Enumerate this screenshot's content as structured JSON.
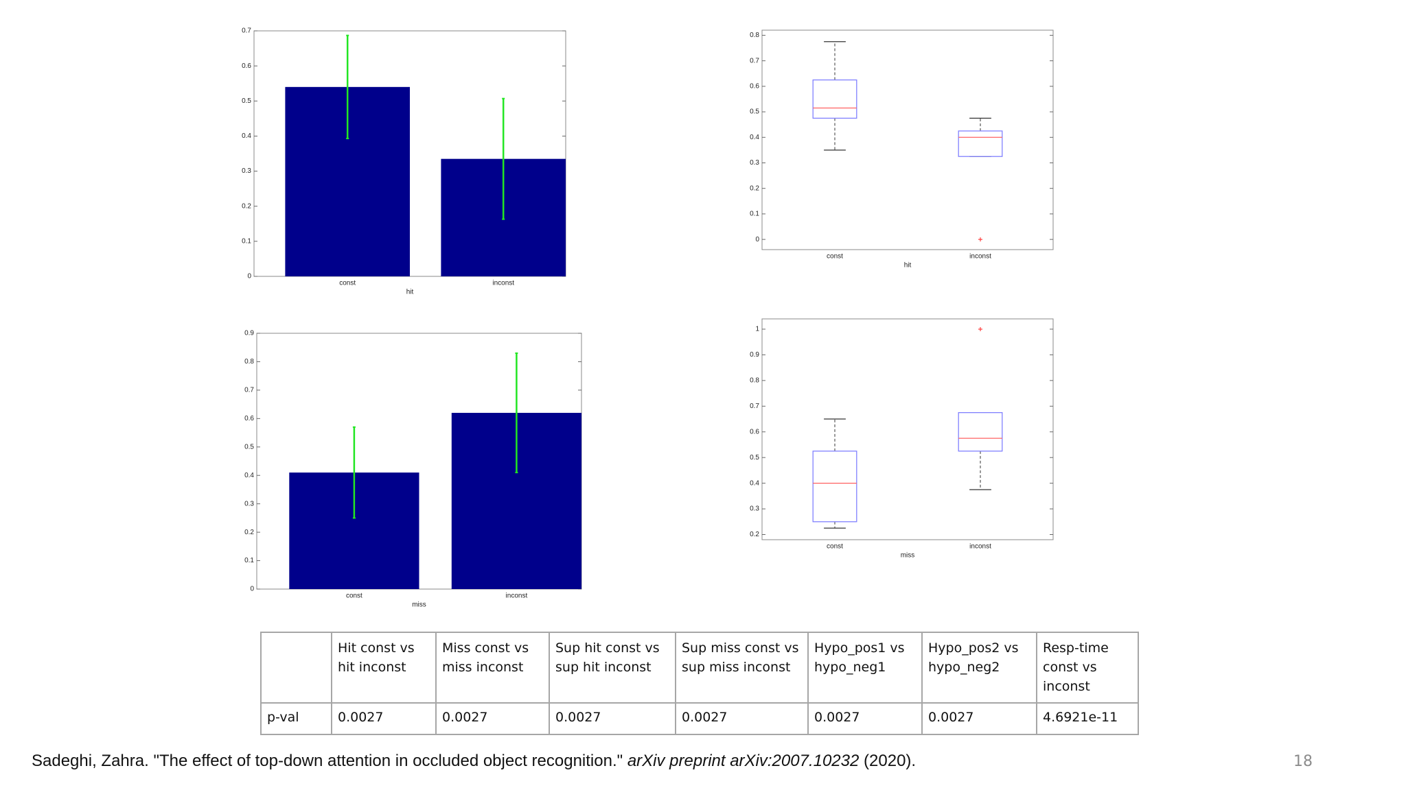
{
  "chart_data": [
    {
      "type": "bar",
      "categories": [
        "const",
        "inconst"
      ],
      "values": [
        0.54,
        0.335
      ],
      "errors": [
        0.147,
        0.172
      ],
      "color": "#00008b",
      "error_color": "#22e622",
      "xlabel": "hit",
      "ylim": [
        0,
        0.7
      ],
      "yticks": [
        0,
        0.1,
        0.2,
        0.3,
        0.4,
        0.5,
        0.6,
        0.7
      ]
    },
    {
      "type": "box",
      "categories": [
        "const",
        "inconst"
      ],
      "boxes": [
        {
          "low": 0.35,
          "q1": 0.475,
          "median": 0.515,
          "q3": 0.625,
          "high": 0.775,
          "outliers": []
        },
        {
          "low": 0.325,
          "q1": 0.325,
          "median": 0.4,
          "q3": 0.425,
          "high": 0.475,
          "outliers": [
            0
          ]
        }
      ],
      "box_color": "#8080ff",
      "median_color": "#ff6060",
      "whisker_color": "#333333",
      "outlier_color": "#ff4040",
      "xlabel": "hit",
      "ylim": [
        -0.04,
        0.82
      ],
      "yticks": [
        0,
        0.1,
        0.2,
        0.3,
        0.4,
        0.5,
        0.6,
        0.7,
        0.8
      ]
    },
    {
      "type": "bar",
      "categories": [
        "const",
        "inconst"
      ],
      "values": [
        0.41,
        0.62
      ],
      "errors": [
        0.16,
        0.21
      ],
      "color": "#00008b",
      "error_color": "#22e622",
      "xlabel": "miss",
      "ylim": [
        0,
        0.9
      ],
      "yticks": [
        0,
        0.1,
        0.2,
        0.3,
        0.4,
        0.5,
        0.6,
        0.7,
        0.8,
        0.9
      ]
    },
    {
      "type": "box",
      "categories": [
        "const",
        "inconst"
      ],
      "boxes": [
        {
          "low": 0.225,
          "q1": 0.25,
          "median": 0.4,
          "q3": 0.525,
          "high": 0.65,
          "outliers": []
        },
        {
          "low": 0.375,
          "q1": 0.525,
          "median": 0.575,
          "q3": 0.675,
          "high": 0.675,
          "outliers": [
            1
          ]
        }
      ],
      "box_color": "#8080ff",
      "median_color": "#ff6060",
      "whisker_color": "#333333",
      "outlier_color": "#ff4040",
      "xlabel": "miss",
      "ylim": [
        0.18,
        1.04
      ],
      "yticks": [
        0.2,
        0.3,
        0.4,
        0.5,
        0.6,
        0.7,
        0.8,
        0.9,
        1
      ]
    }
  ],
  "table": {
    "header": [
      "Hit const vs hit inconst",
      "Miss const vs miss inconst",
      "Sup hit const vs sup hit inconst",
      "Sup miss const vs sup miss inconst",
      "Hypo_pos1 vs hypo_neg1",
      "Hypo_pos2 vs hypo_neg2",
      "Resp-time const vs inconst"
    ],
    "rows": [
      [
        "p-val",
        "0.0027",
        "0.0027",
        "0.0027",
        "0.0027",
        "0.0027",
        "0.0027",
        "4.6921e-11"
      ]
    ]
  },
  "citation": {
    "text": "Sadeghi, Zahra. \"The effect of top-down attention in occluded object recognition.\" ",
    "italic": "arXiv preprint arXiv:2007.10232",
    "tail": " (2020)."
  },
  "page_number": "18"
}
